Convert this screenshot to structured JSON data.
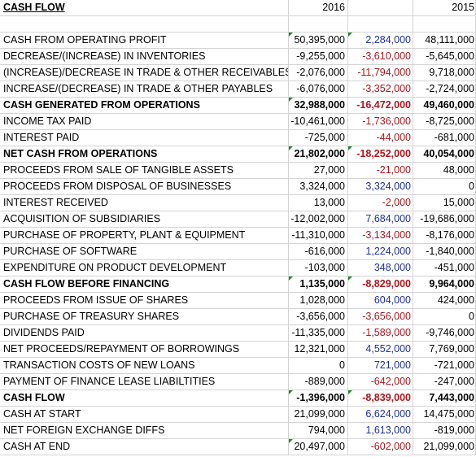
{
  "header": {
    "title": "CASH FLOW",
    "col1": "2016",
    "col2": "",
    "col3": "2015"
  },
  "rows": [
    {
      "label": "CASH FROM OPERATING PROFIT",
      "v2016": "50,395,000",
      "diff": "2,284,000",
      "v2015": "48,111,000",
      "bold": false,
      "diff_color": "blue"
    },
    {
      "label": "DECREASE/(INCREASE) IN INVENTORIES",
      "v2016": "-9,255,000",
      "diff": "-3,610,000",
      "v2015": "-5,645,000",
      "bold": false,
      "diff_color": "red"
    },
    {
      "label": "(INCREASE)/DECREASE IN TRADE & OTHER RECEIVABLES",
      "v2016": "-2,076,000",
      "diff": "-11,794,000",
      "v2015": "9,718,000",
      "bold": false,
      "diff_color": "red"
    },
    {
      "label": "INCREASE/(DECREASE) IN TRADE & OTHER PAYABLES",
      "v2016": "-6,076,000",
      "diff": "-3,352,000",
      "v2015": "-2,724,000",
      "bold": false,
      "diff_color": "red"
    },
    {
      "label": "CASH GENERATED FROM OPERATIONS",
      "v2016": "32,988,000",
      "diff": "-16,472,000",
      "v2015": "49,460,000",
      "bold": true,
      "diff_color": "red"
    },
    {
      "label": "INCOME TAX PAID",
      "v2016": "-10,461,000",
      "diff": "-1,736,000",
      "v2015": "-8,725,000",
      "bold": false,
      "diff_color": "red"
    },
    {
      "label": "INTEREST PAID",
      "v2016": "-725,000",
      "diff": "-44,000",
      "v2015": "-681,000",
      "bold": false,
      "diff_color": "red"
    },
    {
      "label": "NET CASH FROM OPERATIONS",
      "v2016": "21,802,000",
      "diff": "-18,252,000",
      "v2015": "40,054,000",
      "bold": true,
      "diff_color": "red"
    },
    {
      "label": "PROCEEDS FROM SALE OF TANGIBLE ASSETS",
      "v2016": "27,000",
      "diff": "-21,000",
      "v2015": "48,000",
      "bold": false,
      "diff_color": "red"
    },
    {
      "label": "PROCEEDS FROM DISPOSAL OF BUSINESSES",
      "v2016": "3,324,000",
      "diff": "3,324,000",
      "v2015": "0",
      "bold": false,
      "diff_color": "blue"
    },
    {
      "label": "INTEREST RECEIVED",
      "v2016": "13,000",
      "diff": "-2,000",
      "v2015": "15,000",
      "bold": false,
      "diff_color": "red"
    },
    {
      "label": "ACQUISITION OF SUBSIDIARIES",
      "v2016": "-12,002,000",
      "diff": "7,684,000",
      "v2015": "-19,686,000",
      "bold": false,
      "diff_color": "blue"
    },
    {
      "label": "PURCHASE OF PROPERTY, PLANT & EQUIPMENT",
      "v2016": "-11,310,000",
      "diff": "-3,134,000",
      "v2015": "-8,176,000",
      "bold": false,
      "diff_color": "red"
    },
    {
      "label": "PURCHASE OF SOFTWARE",
      "v2016": "-616,000",
      "diff": "1,224,000",
      "v2015": "-1,840,000",
      "bold": false,
      "diff_color": "blue"
    },
    {
      "label": "EXPENDITURE ON PRODUCT DEVELOPMENT",
      "v2016": "-103,000",
      "diff": "348,000",
      "v2015": "-451,000",
      "bold": false,
      "diff_color": "blue"
    },
    {
      "label": "CASH FLOW BEFORE FINANCING",
      "v2016": "1,135,000",
      "diff": "-8,829,000",
      "v2015": "9,964,000",
      "bold": true,
      "diff_color": "red"
    },
    {
      "label": "PROCEEDS FROM ISSUE OF SHARES",
      "v2016": "1,028,000",
      "diff": "604,000",
      "v2015": "424,000",
      "bold": false,
      "diff_color": "blue"
    },
    {
      "label": "PURCHASE OF TREASURY SHARES",
      "v2016": "-3,656,000",
      "diff": "-3,656,000",
      "v2015": "0",
      "bold": false,
      "diff_color": "red"
    },
    {
      "label": "DIVIDENDS PAID",
      "v2016": "-11,335,000",
      "diff": "-1,589,000",
      "v2015": "-9,746,000",
      "bold": false,
      "diff_color": "red"
    },
    {
      "label": "NET PROCEEDS/REPAYMENT OF BORROWINGS",
      "v2016": "12,321,000",
      "diff": "4,552,000",
      "v2015": "7,769,000",
      "bold": false,
      "diff_color": "blue"
    },
    {
      "label": "TRANSACTION COSTS OF NEW LOANS",
      "v2016": "0",
      "diff": "721,000",
      "v2015": "-721,000",
      "bold": false,
      "diff_color": "blue"
    },
    {
      "label": "PAYMENT OF FINANCE LEASE LIABILTITIES",
      "v2016": "-889,000",
      "diff": "-642,000",
      "v2015": "-247,000",
      "bold": false,
      "diff_color": "red"
    },
    {
      "label": "CASH FLOW",
      "v2016": "-1,396,000",
      "diff": "-8,839,000",
      "v2015": "7,443,000",
      "bold": true,
      "diff_color": "red"
    },
    {
      "label": "CASH AT START",
      "v2016": "21,099,000",
      "diff": "6,624,000",
      "v2015": "14,475,000",
      "bold": false,
      "diff_color": "blue"
    },
    {
      "label": "NET FOREIGN EXCHANGE DIFFS",
      "v2016": "794,000",
      "diff": "1,613,000",
      "v2015": "-819,000",
      "bold": false,
      "diff_color": "blue"
    },
    {
      "label": "CASH AT END",
      "v2016": "20,497,000",
      "diff": "-602,000",
      "v2015": "21,099,000",
      "bold": false,
      "diff_color": "red"
    }
  ],
  "colors": {
    "blue": "#1f2f9e",
    "red": "#b0141b",
    "marker": "#1a8a2a",
    "grid": "#d4d4d4"
  }
}
